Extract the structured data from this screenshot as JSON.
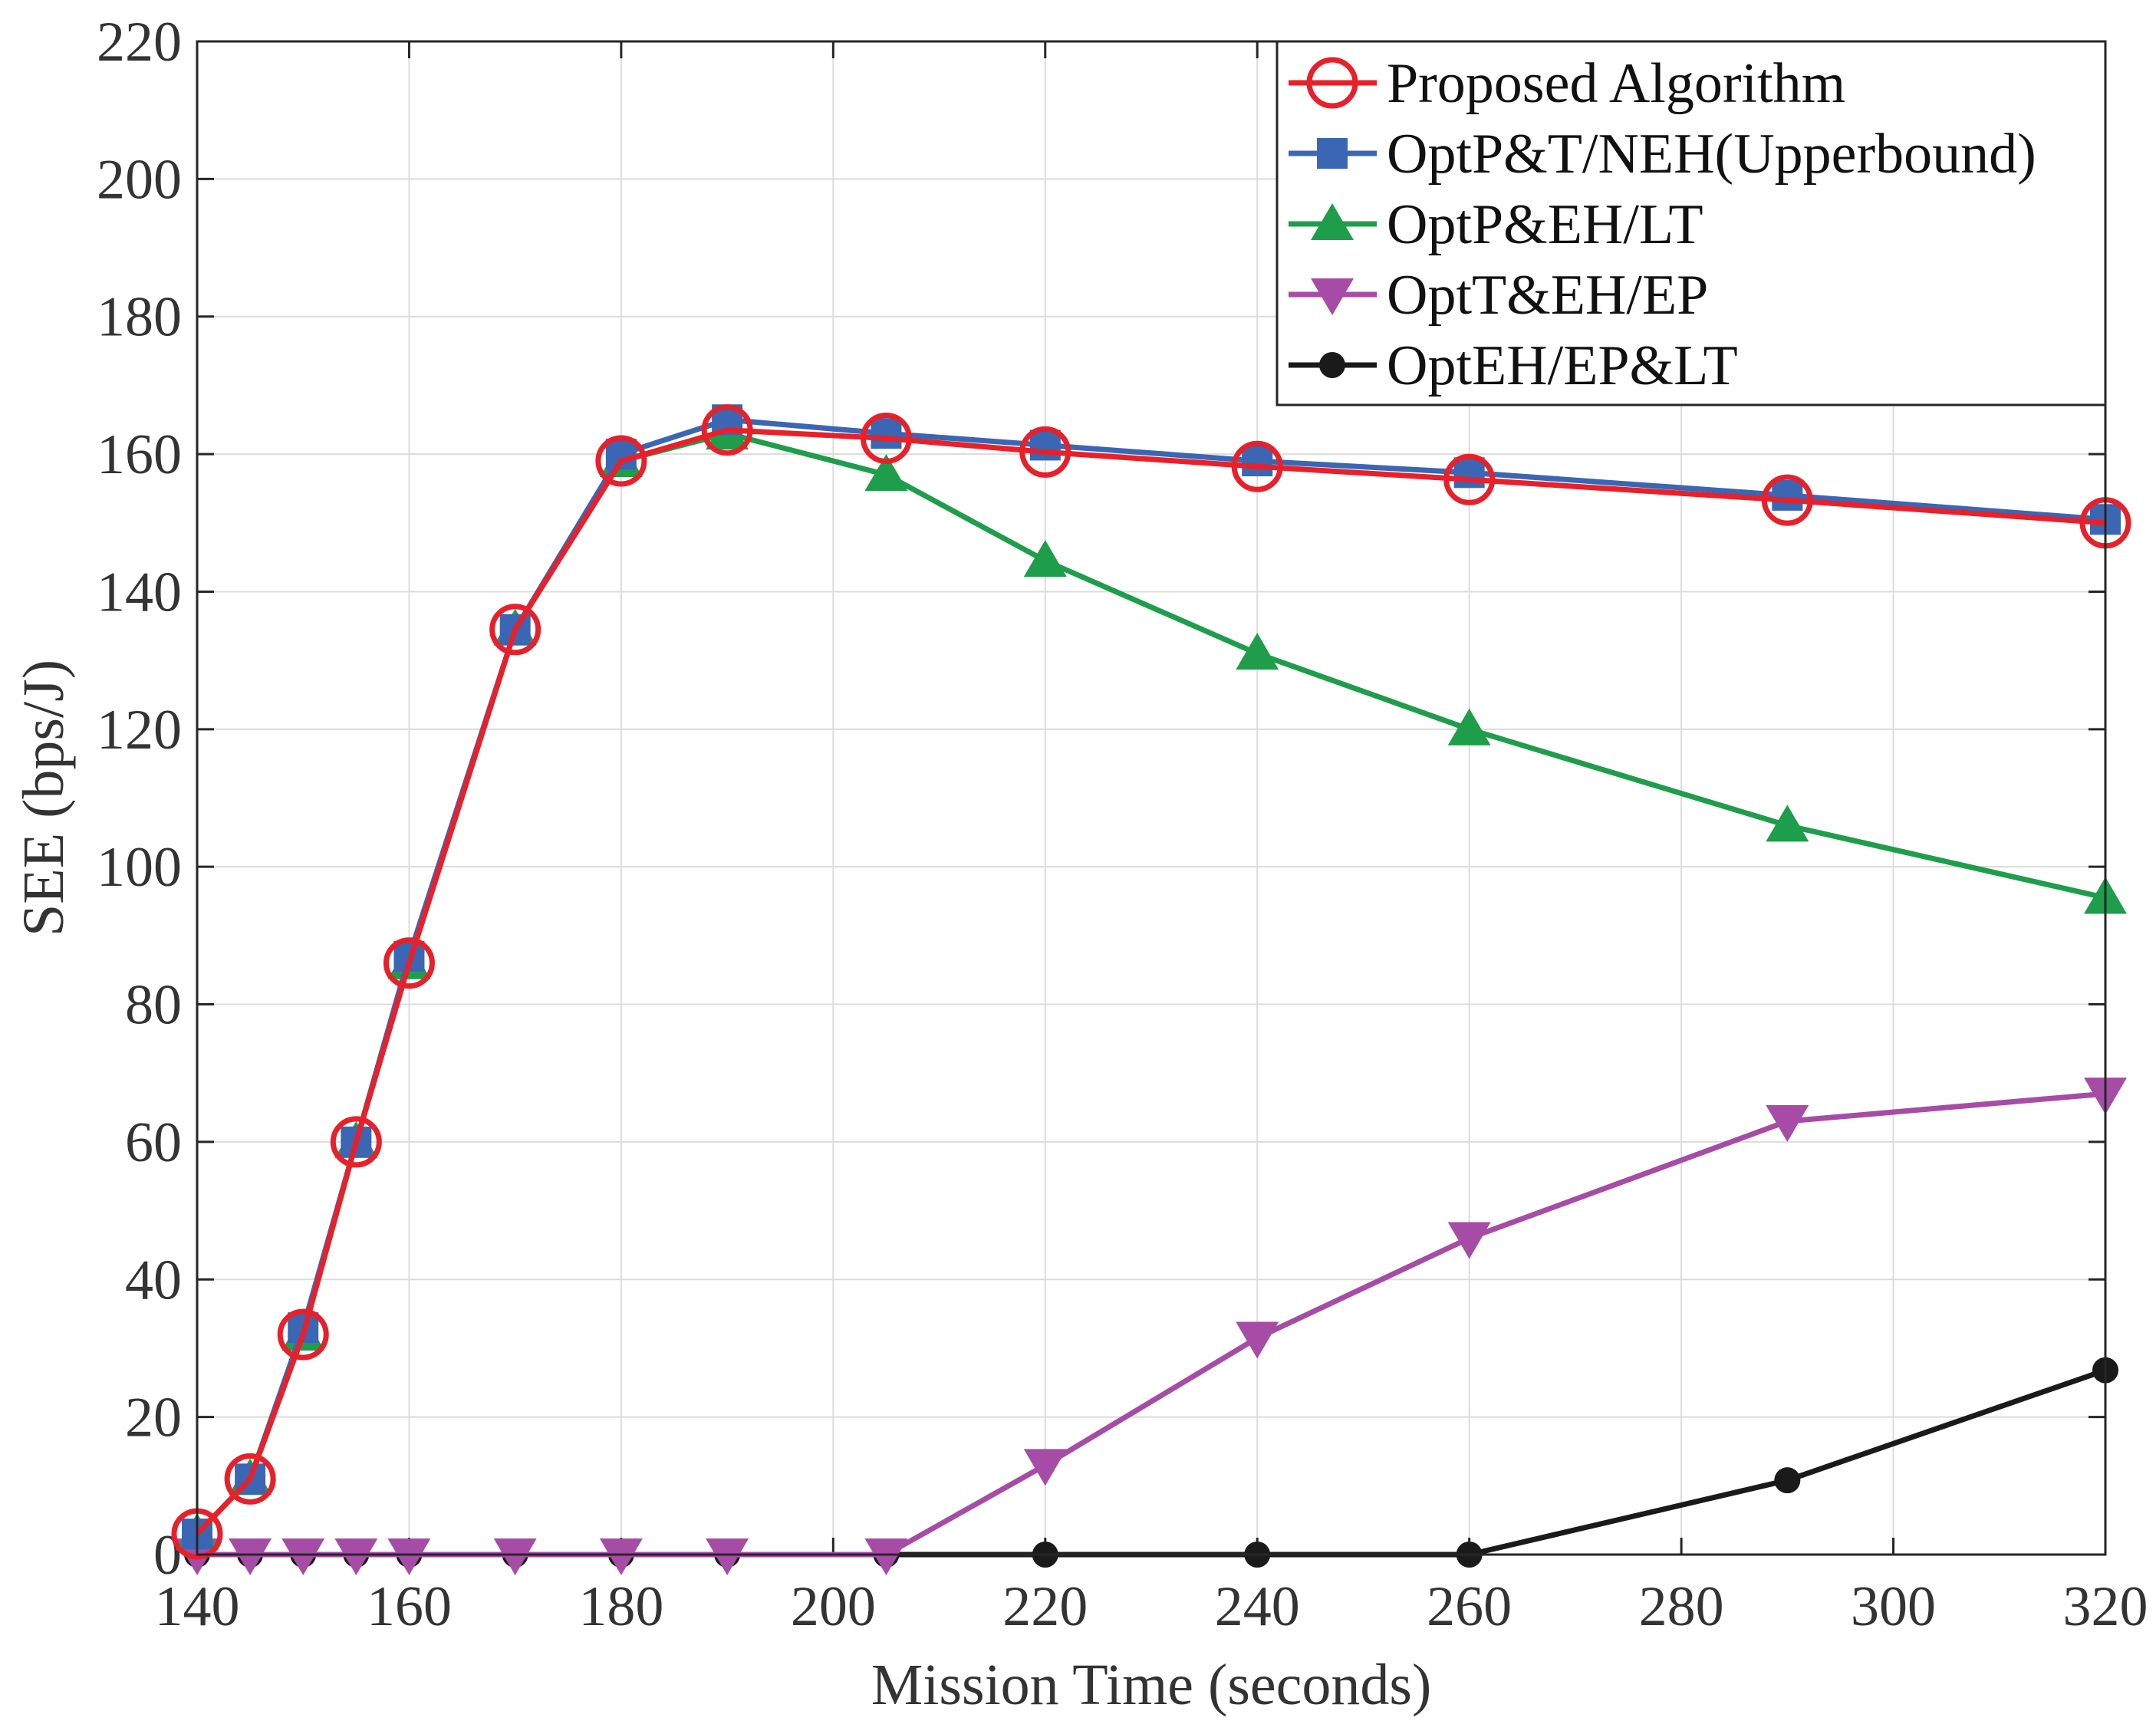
{
  "chart_data": {
    "type": "line",
    "title": "",
    "xlabel": "Mission Time (seconds)",
    "ylabel": "SEE (bps/J)",
    "xlim": [
      140,
      320
    ],
    "ylim": [
      0,
      220
    ],
    "xticks": [
      140,
      160,
      180,
      200,
      220,
      240,
      260,
      280,
      300,
      320
    ],
    "yticks": [
      0,
      20,
      40,
      60,
      80,
      100,
      120,
      140,
      160,
      180,
      200,
      220
    ],
    "grid": true,
    "legend_position": "top-right",
    "x": [
      140,
      145,
      150,
      155,
      160,
      170,
      180,
      190,
      205,
      220,
      240,
      260,
      290,
      320
    ],
    "series": [
      {
        "name": "Proposed Algorithm",
        "color": "#E8202A",
        "marker": "circle-open",
        "values": [
          3,
          11,
          32,
          60,
          86,
          134.5,
          159,
          163.5,
          162.3,
          160.3,
          158.2,
          156.3,
          153.3,
          150
        ]
      },
      {
        "name": "OptP&T/NEH(Upperbound)",
        "color": "#3A66B4",
        "marker": "square",
        "values": [
          3,
          11,
          33,
          60,
          87,
          134.5,
          160,
          165,
          163,
          161.3,
          159,
          157.3,
          154,
          150.5
        ]
      },
      {
        "name": "OptP&EH/LT",
        "color": "#1E9E4A",
        "marker": "triangle-up",
        "values": [
          3,
          11,
          32,
          60,
          86,
          134.5,
          159,
          163,
          157,
          144.5,
          131,
          120,
          106,
          95.5
        ]
      },
      {
        "name": "OptT&EH/EP",
        "color": "#A64CA6",
        "marker": "triangle-down",
        "values": [
          0,
          0,
          0,
          0,
          0,
          0,
          0,
          0,
          0,
          13,
          31.5,
          46,
          63,
          67
        ]
      },
      {
        "name": "OptEH/EP&LT",
        "color": "#1A1A1A",
        "marker": "dot",
        "values": [
          0,
          0,
          0,
          0,
          0,
          0,
          0,
          0,
          0,
          0,
          0,
          0,
          10.8,
          26.8
        ]
      }
    ]
  }
}
